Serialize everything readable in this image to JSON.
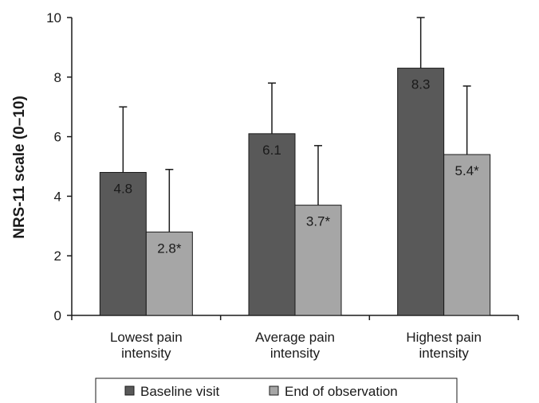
{
  "chart_data": {
    "type": "bar",
    "ylabel": "NRS-11 scale (0–10)",
    "xlabel": "",
    "ylim": [
      0,
      10
    ],
    "yticks": [
      0,
      2,
      4,
      6,
      8,
      10
    ],
    "grid": false,
    "legend_position": "bottom",
    "categories": [
      [
        "Lowest pain",
        "intensity"
      ],
      [
        "Average pain",
        "intensity"
      ],
      [
        "Highest pain",
        "intensity"
      ]
    ],
    "series": [
      {
        "name": "Baseline visit",
        "color": "#595959",
        "values": [
          4.8,
          6.1,
          8.3
        ],
        "error_upper": [
          7.0,
          7.8,
          10.0
        ],
        "labels": [
          "4.8",
          "6.1",
          "8.3"
        ]
      },
      {
        "name": "End of observation",
        "color": "#a6a6a6",
        "values": [
          2.8,
          3.7,
          5.4
        ],
        "error_upper": [
          4.9,
          5.7,
          7.7
        ],
        "labels": [
          "2.8*",
          "3.7*",
          "5.4*"
        ]
      }
    ]
  }
}
